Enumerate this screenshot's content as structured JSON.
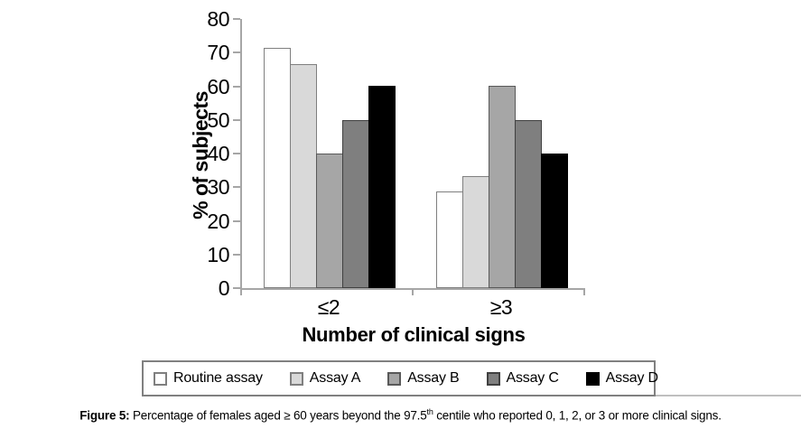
{
  "figure": {
    "caption_label": "Figure 5:",
    "caption_body": " Percentage of females aged ≥ 60 years beyond the 97.5",
    "caption_sup": "th",
    "caption_tail": " centile who reported 0, 1, 2, or 3 or more clinical signs."
  },
  "chart_data": {
    "type": "bar",
    "title": "",
    "xlabel": "Number of clinical signs",
    "ylabel": "% of subjects",
    "categories": [
      "≤2",
      "≥3"
    ],
    "series": [
      {
        "name": "Routine assay",
        "values": [
          71.4,
          28.6
        ],
        "fill": "#ffffff",
        "border": "#7f7f7f"
      },
      {
        "name": "Assay A",
        "values": [
          66.7,
          33.3
        ],
        "fill": "#d9d9d9",
        "border": "#7f7f7f"
      },
      {
        "name": "Assay B",
        "values": [
          40,
          60
        ],
        "fill": "#a6a6a6",
        "border": "#595959"
      },
      {
        "name": "Assay C",
        "values": [
          50,
          50
        ],
        "fill": "#7f7f7f",
        "border": "#404040"
      },
      {
        "name": "Assay D",
        "values": [
          60,
          40
        ],
        "fill": "#000000",
        "border": "#000000"
      }
    ],
    "ylim": [
      0,
      80
    ],
    "yticks": [
      0,
      10,
      20,
      30,
      40,
      50,
      60,
      70,
      80
    ],
    "grid": false,
    "legend_position": "bottom-box",
    "axis_color": "#a6a6a6",
    "legend_border_color": "#808080"
  }
}
